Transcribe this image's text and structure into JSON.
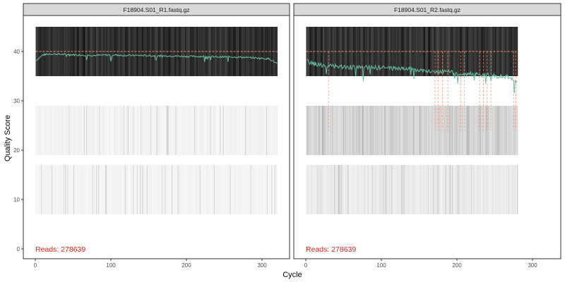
{
  "ylabel": "Quality Score",
  "xlabel": "Cycle",
  "chart_data": [
    {
      "type": "heatmap",
      "title": "F18904.S01_R1.fastq.gz",
      "annotation": "Reads:  278639",
      "xlabel": "Cycle",
      "ylabel": "Quality Score",
      "xlim": [
        0,
        340
      ],
      "ylim": [
        0,
        45
      ],
      "x_ticks": [
        0,
        100,
        200,
        300
      ],
      "y_ticks": [
        0,
        10,
        20,
        30,
        40
      ],
      "cycles": 320,
      "quality_bands": [
        {
          "score_range": [
            35,
            45
          ],
          "frequency": "high"
        },
        {
          "score_range": [
            19,
            29
          ],
          "frequency": "low"
        },
        {
          "score_range": [
            7,
            17
          ],
          "frequency": "very low"
        }
      ],
      "series": [
        {
          "name": "",
          "kind": "mean",
          "color": "#66c2a5",
          "x": [
            1,
            10,
            20,
            40,
            60,
            80,
            100,
            120,
            140,
            160,
            180,
            200,
            220,
            240,
            260,
            280,
            300,
            310,
            320
          ],
          "y": [
            38.2,
            39.3,
            39.5,
            39.4,
            39.3,
            39.2,
            39.3,
            39.2,
            39.2,
            39.1,
            39.1,
            39.0,
            39.0,
            38.9,
            38.9,
            38.8,
            38.6,
            38.5,
            37.5
          ]
        },
        {
          "name": "",
          "kind": "median",
          "color": "#fc8d62",
          "y_constant": 40
        }
      ],
      "grid": false
    },
    {
      "type": "heatmap",
      "title": "F18904.S01_R2.fastq.gz",
      "annotation": "Reads:  278639",
      "xlabel": "Cycle",
      "ylabel": "Quality Score",
      "xlim": [
        0,
        340
      ],
      "ylim": [
        0,
        45
      ],
      "x_ticks": [
        0,
        100,
        200,
        300
      ],
      "y_ticks": [
        0,
        10,
        20,
        30,
        40
      ],
      "cycles": 280,
      "quality_bands": [
        {
          "score_range": [
            35,
            45
          ],
          "frequency": "high"
        },
        {
          "score_range": [
            19,
            29
          ],
          "frequency": "moderate"
        },
        {
          "score_range": [
            7,
            17
          ],
          "frequency": "low"
        }
      ],
      "series": [
        {
          "name": "",
          "kind": "mean",
          "color": "#66c2a5",
          "x": [
            1,
            10,
            20,
            30,
            40,
            60,
            80,
            100,
            120,
            140,
            160,
            170,
            180,
            200,
            220,
            230,
            240,
            250,
            260,
            270,
            280
          ],
          "y": [
            38.0,
            37.5,
            37.3,
            37.0,
            37.0,
            36.8,
            36.8,
            36.7,
            36.6,
            36.4,
            36.2,
            35.8,
            36.0,
            35.6,
            35.6,
            35.2,
            35.4,
            35.0,
            35.0,
            34.8,
            33.5
          ]
        },
        {
          "name": "",
          "kind": "median",
          "color": "#fc8d62",
          "y_constant": 40,
          "dips_x": [
            30,
            171,
            175,
            181,
            188,
            205,
            210,
            230,
            235,
            240,
            245,
            275,
            278
          ],
          "dips_y": [
            24,
            24,
            24,
            24,
            24,
            24,
            24,
            24,
            24,
            24,
            24,
            24,
            24
          ]
        }
      ],
      "grid": false
    }
  ]
}
